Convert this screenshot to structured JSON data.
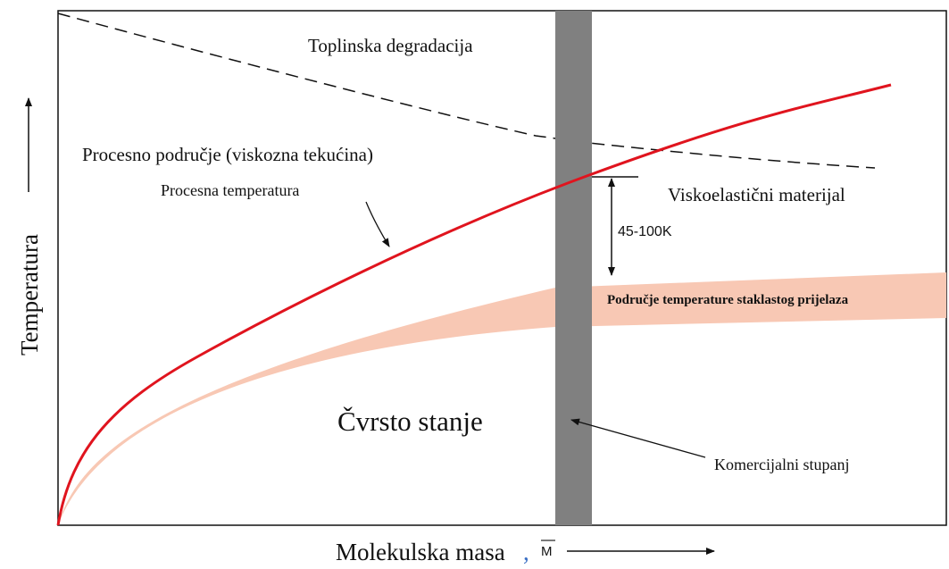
{
  "labels": {
    "thermal": "Toplinska degradacija",
    "process_region": "Procesno područje (viskozna tekućina)",
    "process_temp": "Procesna temperatura",
    "viscoelastic": "Viskoelastični materijal",
    "range": "45-100K",
    "glass": "Područje temperature staklastog prijelaza",
    "solid": "Čvrsto stanje",
    "commercial": "Komercijalni stupanj"
  },
  "axes": {
    "x": "Molekulska masa",
    "x_sep": ",",
    "x_symbol": "M",
    "y": "Temperatura"
  }
}
